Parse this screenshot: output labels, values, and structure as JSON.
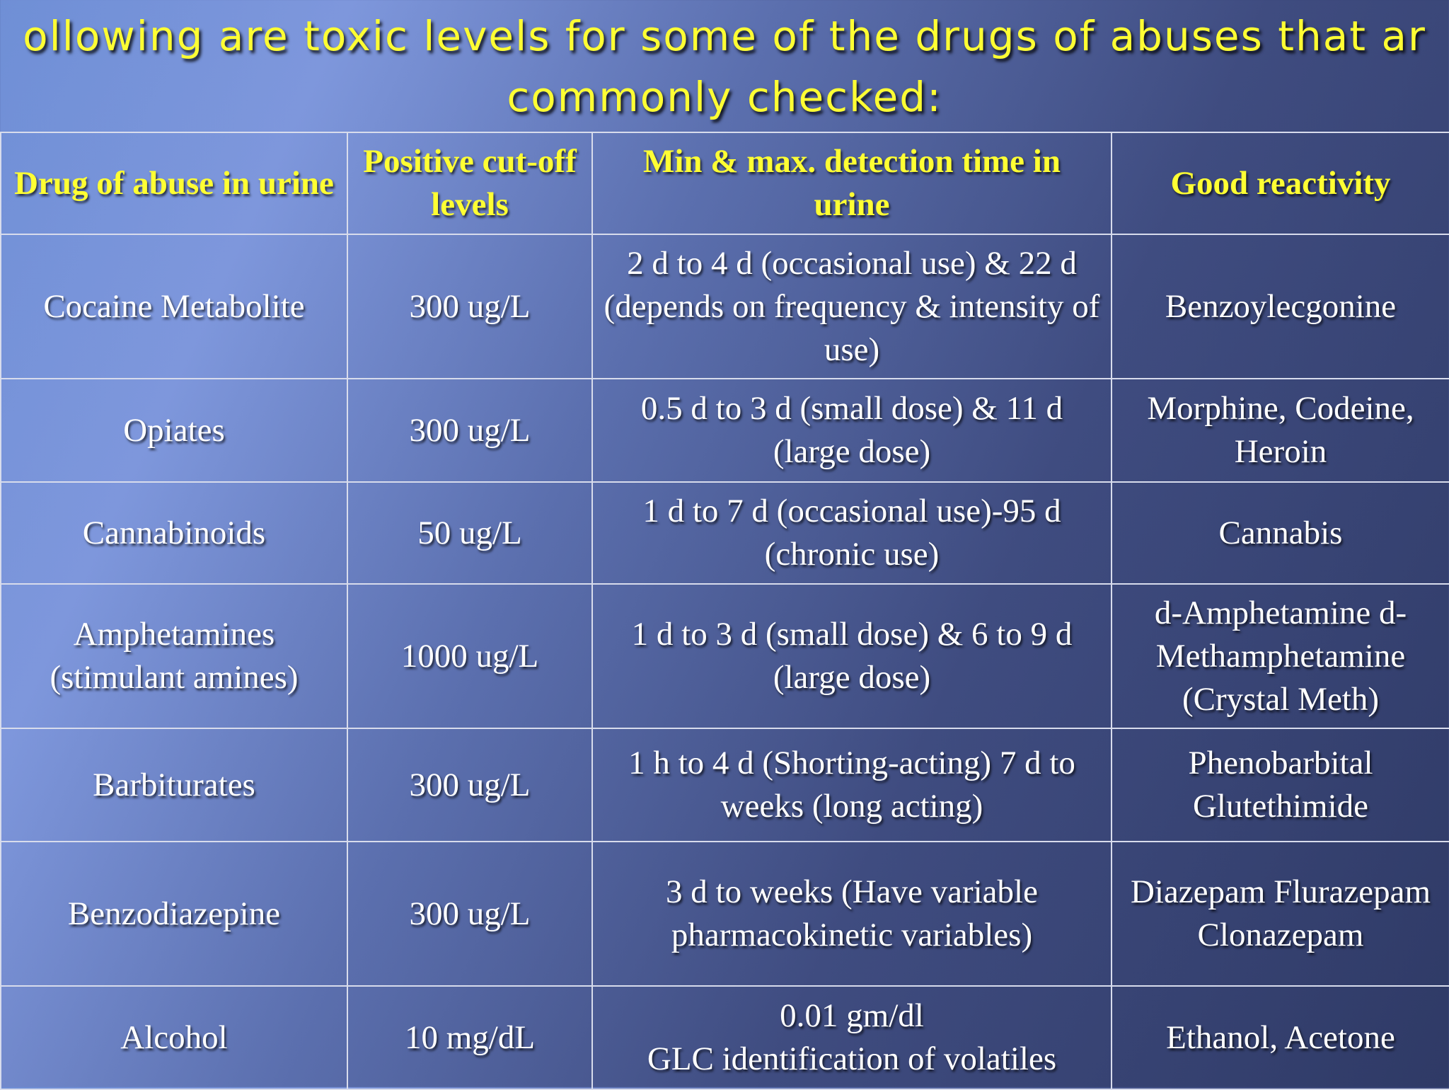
{
  "slide": {
    "title_line1": "ollowing are toxic levels for some of the drugs of abuses that ar",
    "title_line2": "commonly checked:"
  },
  "table": {
    "headers": [
      "Drug of abuse in urine",
      "Positive cut-off levels",
      "Min & max. detection time in urine",
      "Good reactivity"
    ],
    "rows": [
      {
        "drug": "Cocaine Metabolite",
        "cutoff": "300 ug/L",
        "detection": "2 d to 4 d (occasional use) & 22 d (depends on frequency & intensity of use)",
        "reactivity": "Benzoylecgonine"
      },
      {
        "drug": "Opiates",
        "cutoff": "300 ug/L",
        "detection": "0.5 d to 3 d (small dose) & 11 d (large dose)",
        "reactivity": "Morphine, Codeine, Heroin"
      },
      {
        "drug": "Cannabinoids",
        "cutoff": "50 ug/L",
        "detection": "1 d to 7 d (occasional use)-95 d (chronic use)",
        "reactivity": "Cannabis"
      },
      {
        "drug": "Amphetamines (stimulant amines)",
        "cutoff": "1000 ug/L",
        "detection": "1 d to 3 d (small dose) & 6 to 9 d (large dose)",
        "reactivity": "d-Amphetamine d-Methamphetamine (Crystal Meth)"
      },
      {
        "drug": "Barbiturates",
        "cutoff": "300 ug/L",
        "detection": "1 h to 4 d (Shorting-acting) 7 d to weeks (long acting)",
        "reactivity": "Phenobarbital Glutethimide"
      },
      {
        "drug": "Benzodiazepine",
        "cutoff": "300 ug/L",
        "detection": "3 d to weeks (Have variable pharmacokinetic variables)",
        "reactivity": "Diazepam Flurazepam Clonazepam"
      },
      {
        "drug": "Alcohol",
        "cutoff": "10 mg/dL",
        "detection_line1": "0.01 gm/dl",
        "detection_line2": "GLC identification of volatiles",
        "reactivity": "Ethanol, Acetone"
      }
    ]
  },
  "colors": {
    "title": "#ffff33",
    "header_text": "#ffff33",
    "body_text": "#ffffff",
    "grid_lines": "#d8dcec"
  }
}
